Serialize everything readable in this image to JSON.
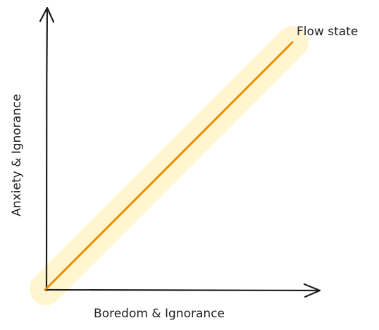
{
  "diagram": {
    "x_axis_label": "Boredom & Ignorance",
    "y_axis_label": "Anxiety & Ignorance",
    "line_label": "Flow state",
    "colors": {
      "axis": "#1e1e1e",
      "line": "#f08c00",
      "band": "#fff3bf"
    }
  }
}
